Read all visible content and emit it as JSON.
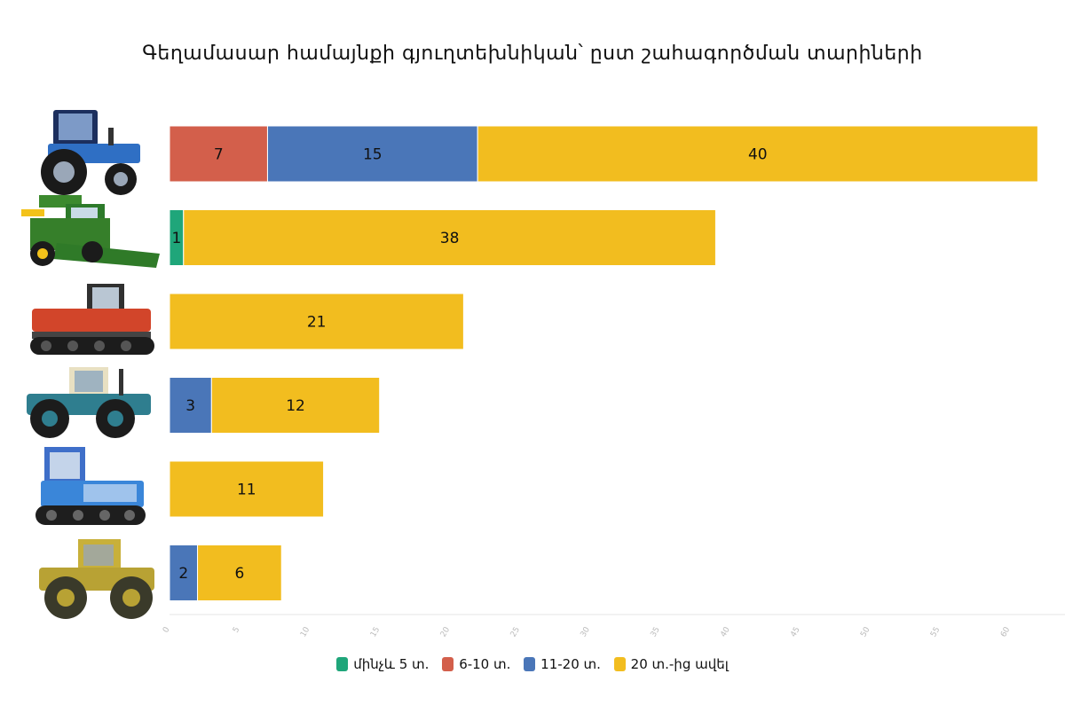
{
  "chart_data": {
    "type": "bar",
    "orientation": "horizontal",
    "stacked": true,
    "title": "Գեղամասար համայնքի գյուղտեխնիկան՝ ըստ շահագործման տարիների",
    "categories_icons": [
      "wheeled-tractor-blue-icon",
      "combine-harvester-icon",
      "crawler-tractor-red-icon",
      "wheeled-tractor-teal-icon",
      "crawler-tractor-blue-icon",
      "wheeled-tractor-yellow-icon"
    ],
    "series": [
      {
        "name": "մինչև 5 տ.",
        "color": "#1fa67a",
        "values": [
          0,
          1,
          0,
          0,
          0,
          0
        ]
      },
      {
        "name": "6-10 տ.",
        "color": "#d35f4b",
        "values": [
          7,
          0,
          0,
          0,
          0,
          0
        ]
      },
      {
        "name": "11-20 տ.",
        "color": "#4a76b8",
        "values": [
          15,
          0,
          0,
          3,
          0,
          2
        ]
      },
      {
        "name": "20 տ.-ից ավել",
        "color": "#f2bd1f",
        "values": [
          40,
          38,
          21,
          12,
          11,
          6
        ]
      }
    ],
    "xlim": [
      0,
      64
    ],
    "xticks": [
      0,
      5,
      10,
      15,
      20,
      25,
      30,
      35,
      40,
      45,
      50,
      55,
      60
    ],
    "legend_position": "bottom"
  }
}
